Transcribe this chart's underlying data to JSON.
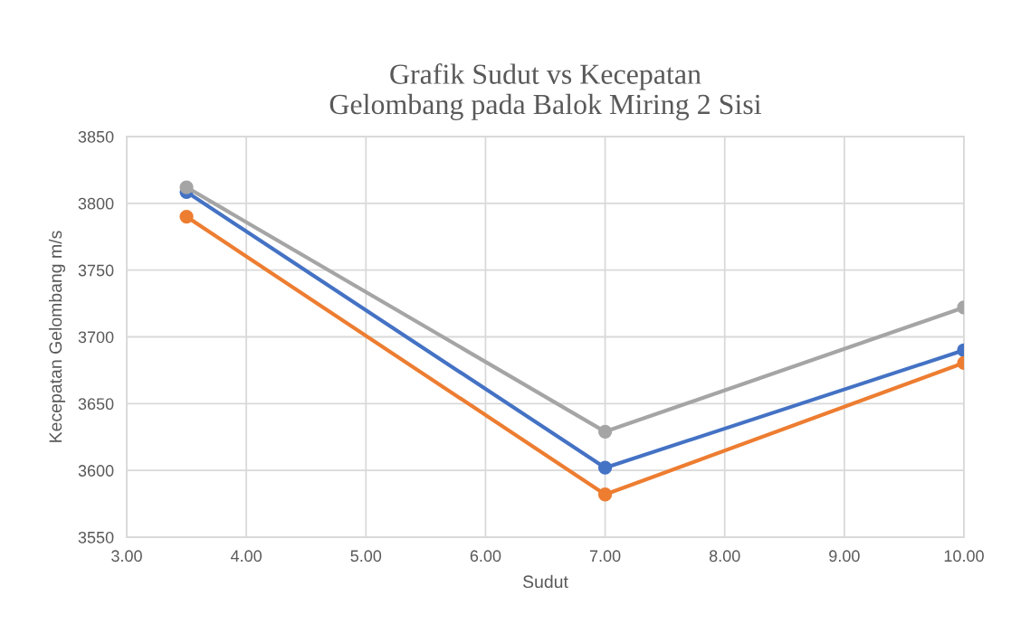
{
  "chart_data": {
    "type": "line",
    "title": "Grafik Sudut vs Kecepatan\nGelombang pada Balok Miring 2 Sisi",
    "xlabel": "Sudut",
    "ylabel": "Kecepatan Gelombang m/s",
    "x": [
      3.5,
      7,
      10
    ],
    "series": [
      {
        "color": "#4472c4",
        "values": [
          3808.5,
          3602,
          3690
        ]
      },
      {
        "color": "#ed7d31",
        "values": [
          3790,
          3582,
          3680.5
        ]
      },
      {
        "color": "#a5a5a5",
        "values": [
          3812,
          3629,
          3722
        ]
      }
    ],
    "xlim": [
      3,
      10
    ],
    "xticks": [
      {
        "value": 3,
        "label": "3.00"
      },
      {
        "value": 4,
        "label": "4.00"
      },
      {
        "value": 5,
        "label": "5.00"
      },
      {
        "value": 6,
        "label": "6.00"
      },
      {
        "value": 7,
        "label": "7.00"
      },
      {
        "value": 8,
        "label": "8.00"
      },
      {
        "value": 9,
        "label": "9.00"
      },
      {
        "value": 10,
        "label": "10.00"
      }
    ],
    "ylim": [
      3550,
      3850
    ],
    "yticks": [
      3550,
      3600,
      3650,
      3700,
      3750,
      3800,
      3850
    ],
    "grid": true,
    "marker": "circle",
    "line_style": "solid"
  }
}
